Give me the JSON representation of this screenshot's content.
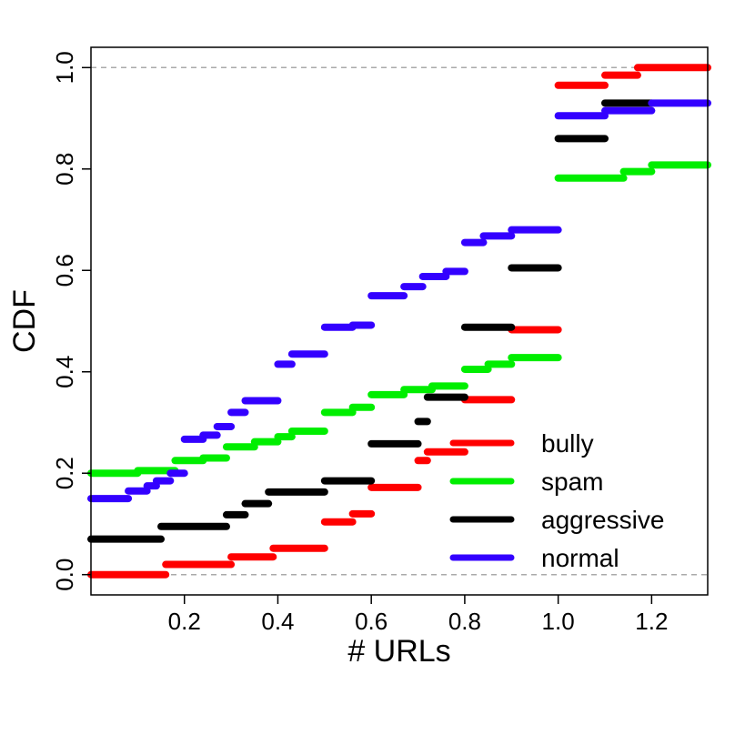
{
  "chart_data": {
    "type": "line",
    "title": "",
    "xlabel": "# URLs",
    "ylabel": "CDF",
    "xlim": [
      0.0,
      1.32
    ],
    "ylim": [
      -0.04,
      1.04
    ],
    "x_ticks": [
      0.2,
      0.4,
      0.6,
      0.8,
      1.0,
      1.2
    ],
    "x_tick_labels": [
      "0.2",
      "0.4",
      "0.6",
      "0.8",
      "1.0",
      "1.2"
    ],
    "y_ticks": [
      0.0,
      0.2,
      0.4,
      0.6,
      0.8,
      1.0
    ],
    "y_tick_labels": [
      "0.0",
      "0.2",
      "0.4",
      "0.6",
      "0.8",
      "1.0"
    ],
    "reference_lines_y": [
      0.0,
      1.0
    ],
    "legend_position": "bottom-right",
    "series": [
      {
        "name": "bully",
        "color": "#ff0000",
        "steps": [
          [
            0.0,
            0.16,
            0.0
          ],
          [
            0.16,
            0.3,
            0.02
          ],
          [
            0.3,
            0.39,
            0.035
          ],
          [
            0.39,
            0.5,
            0.052
          ],
          [
            0.5,
            0.56,
            0.104
          ],
          [
            0.56,
            0.6,
            0.12
          ],
          [
            0.6,
            0.7,
            0.172
          ],
          [
            0.7,
            0.72,
            0.225
          ],
          [
            0.72,
            0.8,
            0.242
          ],
          [
            0.8,
            0.9,
            0.345
          ],
          [
            0.9,
            1.0,
            0.483
          ],
          [
            1.0,
            1.1,
            0.965
          ],
          [
            1.1,
            1.17,
            0.985
          ],
          [
            1.17,
            1.32,
            1.0
          ]
        ]
      },
      {
        "name": "spam",
        "color": "#00ee00",
        "steps": [
          [
            0.0,
            0.1,
            0.2
          ],
          [
            0.1,
            0.18,
            0.205
          ],
          [
            0.18,
            0.24,
            0.225
          ],
          [
            0.24,
            0.29,
            0.23
          ],
          [
            0.29,
            0.35,
            0.252
          ],
          [
            0.35,
            0.4,
            0.262
          ],
          [
            0.4,
            0.43,
            0.272
          ],
          [
            0.43,
            0.5,
            0.283
          ],
          [
            0.5,
            0.56,
            0.32
          ],
          [
            0.56,
            0.6,
            0.33
          ],
          [
            0.6,
            0.67,
            0.355
          ],
          [
            0.67,
            0.73,
            0.365
          ],
          [
            0.73,
            0.8,
            0.372
          ],
          [
            0.8,
            0.85,
            0.405
          ],
          [
            0.85,
            0.9,
            0.415
          ],
          [
            0.9,
            1.0,
            0.428
          ],
          [
            1.0,
            1.14,
            0.782
          ],
          [
            1.14,
            1.2,
            0.795
          ],
          [
            1.2,
            1.32,
            0.808
          ]
        ]
      },
      {
        "name": "aggressive",
        "color": "#000000",
        "steps": [
          [
            0.0,
            0.15,
            0.07
          ],
          [
            0.15,
            0.29,
            0.095
          ],
          [
            0.29,
            0.33,
            0.118
          ],
          [
            0.33,
            0.38,
            0.14
          ],
          [
            0.38,
            0.5,
            0.163
          ],
          [
            0.5,
            0.6,
            0.185
          ],
          [
            0.6,
            0.7,
            0.258
          ],
          [
            0.7,
            0.72,
            0.302
          ],
          [
            0.72,
            0.8,
            0.35
          ],
          [
            0.8,
            0.9,
            0.488
          ],
          [
            0.9,
            1.0,
            0.605
          ],
          [
            1.0,
            1.1,
            0.86
          ],
          [
            1.1,
            1.2,
            0.93
          ]
        ]
      },
      {
        "name": "normal",
        "color": "#3300ff",
        "steps": [
          [
            0.0,
            0.08,
            0.15
          ],
          [
            0.08,
            0.12,
            0.165
          ],
          [
            0.12,
            0.14,
            0.175
          ],
          [
            0.14,
            0.17,
            0.185
          ],
          [
            0.17,
            0.2,
            0.2
          ],
          [
            0.2,
            0.24,
            0.267
          ],
          [
            0.24,
            0.27,
            0.275
          ],
          [
            0.27,
            0.3,
            0.292
          ],
          [
            0.3,
            0.33,
            0.32
          ],
          [
            0.33,
            0.4,
            0.343
          ],
          [
            0.4,
            0.43,
            0.415
          ],
          [
            0.43,
            0.5,
            0.435
          ],
          [
            0.5,
            0.56,
            0.488
          ],
          [
            0.56,
            0.6,
            0.492
          ],
          [
            0.6,
            0.67,
            0.55
          ],
          [
            0.67,
            0.71,
            0.568
          ],
          [
            0.71,
            0.76,
            0.588
          ],
          [
            0.76,
            0.8,
            0.598
          ],
          [
            0.8,
            0.84,
            0.655
          ],
          [
            0.84,
            0.9,
            0.668
          ],
          [
            0.9,
            1.0,
            0.68
          ],
          [
            1.0,
            1.1,
            0.905
          ],
          [
            1.1,
            1.2,
            0.915
          ],
          [
            1.2,
            1.32,
            0.93
          ]
        ]
      }
    ]
  }
}
